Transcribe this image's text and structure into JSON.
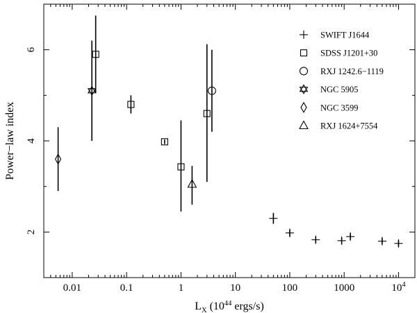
{
  "chart_data": {
    "type": "scatter",
    "x_scale": "log",
    "xlim": [
      0.003,
      20000
    ],
    "ylim": [
      1,
      7
    ],
    "grid": false,
    "legend_placement": "top-right",
    "x_ticks": [
      {
        "value": 0.01,
        "label": "0.01"
      },
      {
        "value": 0.1,
        "label": "0.1"
      },
      {
        "value": 1,
        "label": "1"
      },
      {
        "value": 10,
        "label": "10"
      },
      {
        "value": 100,
        "label": "100"
      },
      {
        "value": 1000,
        "label": "1000"
      },
      {
        "value": 10000,
        "label": "10",
        "sup": "4"
      }
    ],
    "y_ticks": [
      {
        "value": 2,
        "label": "2"
      },
      {
        "value": 4,
        "label": "4"
      },
      {
        "value": 6,
        "label": "6"
      }
    ],
    "xlabel": {
      "prefix": "L",
      "sub": "X",
      "middle": " (10",
      "sup": "44",
      "suffix": " ergs/s)"
    },
    "ylabel": "Power−law index",
    "series": [
      {
        "name": "SWIFT J1644",
        "marker": "plus",
        "points": [
          {
            "x": 50,
            "y": 2.3,
            "yerr": [
              2.18,
              2.42
            ]
          },
          {
            "x": 100,
            "y": 1.98,
            "yerr": [
              1.9,
              2.06
            ]
          },
          {
            "x": 300,
            "y": 1.83,
            "yerr": [
              1.76,
              1.9
            ]
          },
          {
            "x": 900,
            "y": 1.81,
            "yerr": [
              1.74,
              1.88
            ]
          },
          {
            "x": 1300,
            "y": 1.9,
            "yerr": [
              1.83,
              1.97
            ]
          },
          {
            "x": 5000,
            "y": 1.8,
            "yerr": [
              1.73,
              1.87
            ]
          },
          {
            "x": 10000,
            "y": 1.75,
            "yerr": [
              1.68,
              1.82
            ]
          }
        ]
      },
      {
        "name": "SDSS J1201+30",
        "marker": "square",
        "points": [
          {
            "x": 0.027,
            "y": 5.9,
            "yerr": [
              5.05,
              6.75
            ]
          },
          {
            "x": 0.12,
            "y": 4.8,
            "yerr": [
              4.6,
              5.0
            ]
          },
          {
            "x": 0.5,
            "y": 3.98,
            "yerr": [
              3.93,
              4.03
            ]
          },
          {
            "x": 1.0,
            "y": 3.43,
            "yerr": [
              2.45,
              4.45
            ]
          },
          {
            "x": 3.0,
            "y": 4.6,
            "yerr": [
              3.1,
              6.12
            ]
          }
        ]
      },
      {
        "name": "RXJ 1242.6−1119",
        "marker": "circle",
        "points": [
          {
            "x": 3.7,
            "y": 5.1,
            "yerr": [
              4.2,
              6.0
            ]
          }
        ]
      },
      {
        "name": "NGC 5905",
        "marker": "star",
        "points": [
          {
            "x": 0.023,
            "y": 5.1,
            "yerr": [
              4.0,
              6.2
            ]
          }
        ]
      },
      {
        "name": "NGC 3599",
        "marker": "diamond",
        "points": [
          {
            "x": 0.0055,
            "y": 3.6,
            "yerr": [
              2.9,
              4.3
            ]
          }
        ]
      },
      {
        "name": "RXJ 1624+7554",
        "marker": "triangle",
        "points": [
          {
            "x": 1.6,
            "y": 3.05,
            "yerr": [
              2.6,
              3.45
            ]
          }
        ]
      }
    ]
  }
}
